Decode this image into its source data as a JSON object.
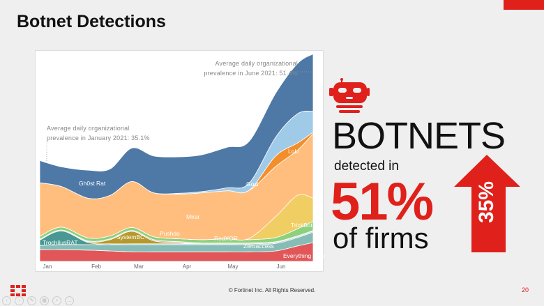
{
  "slide": {
    "title": "Botnet Detections",
    "footer_copyright": "© Fortinet Inc. All Rights Reserved.",
    "page_number": "20",
    "accent_color": "#e0201b"
  },
  "infographic": {
    "icon": "robot-icon",
    "headline": "BOTNETS",
    "detected_in": "detected in",
    "percent": "51%",
    "of_firms": "of firms",
    "increase_icon": "up-arrow-icon",
    "increase_label": "35%"
  },
  "chart_data": {
    "type": "area",
    "stacked": true,
    "title": "",
    "xlabel": "",
    "ylabel": "",
    "grid": false,
    "legend": "none (inline labels)",
    "x": [
      "2021-01-01",
      "2021-01-15",
      "2021-02-01",
      "2021-02-15",
      "2021-03-01",
      "2021-03-15",
      "2021-04-01",
      "2021-04-15",
      "2021-05-01",
      "2021-05-15",
      "2021-06-01",
      "2021-06-15",
      "2021-06-25"
    ],
    "x_tick_labels": [
      "Jan",
      "Feb",
      "Mar",
      "Apr",
      "May",
      "Jun"
    ],
    "annotations": [
      "Average daily organizational prevalence in January 2021: 35.1%",
      "Average daily organizational prevalence in June 2021: 51.4%"
    ],
    "series": [
      {
        "name": "Everything Else",
        "color": "#e15759",
        "values": [
          2.8,
          2.8,
          2.7,
          2.5,
          2.3,
          2.3,
          2.3,
          2.3,
          2.3,
          2.3,
          2.5,
          3.7,
          4.5
        ]
      },
      {
        "name": "Zeroaccess",
        "color": "#86bcb6",
        "values": [
          1.0,
          1.2,
          1.3,
          1.5,
          1.7,
          1.7,
          1.7,
          1.7,
          1.7,
          1.7,
          1.8,
          2.0,
          2.5
        ]
      },
      {
        "name": "TrochilusRAT",
        "color": "#499894",
        "values": [
          1.3,
          3.3,
          0.5,
          0.2,
          0.2,
          0.2,
          0.2,
          0.2,
          0.2,
          0.2,
          0.2,
          0.2,
          0.2
        ]
      },
      {
        "name": "SystemBC",
        "color": "#b6992d",
        "values": [
          0,
          0,
          0.2,
          1.0,
          3.0,
          0.7,
          0.2,
          0,
          0,
          0,
          0,
          0,
          0
        ]
      },
      {
        "name": "Pushdo",
        "color": "#d7b5a6",
        "values": [
          0.2,
          0.2,
          0.2,
          0.2,
          0.2,
          0.3,
          0.3,
          0.2,
          0.2,
          0.2,
          0.2,
          0.2,
          0.2
        ]
      },
      {
        "name": "RedXOR",
        "color": "#8cd17d",
        "values": [
          0.7,
          0.7,
          0.7,
          0.7,
          0.7,
          0.7,
          0.7,
          0.8,
          1.0,
          0.8,
          1.0,
          1.7,
          2.2
        ]
      },
      {
        "name": "TrickBot",
        "color": "#f1ce63",
        "values": [
          0,
          0,
          0,
          0,
          0,
          0,
          0,
          0,
          0,
          0.3,
          5.0,
          8.0,
          5.5
        ]
      },
      {
        "name": "Mirai",
        "color": "#ffbe7d",
        "values": [
          12.8,
          9.7,
          9.5,
          9.7,
          11.0,
          10.5,
          10.7,
          11.2,
          11.5,
          11.5,
          12.0,
          10.8,
          15.5
        ]
      },
      {
        "name": "Loki",
        "color": "#f28e2b",
        "values": [
          0,
          0,
          0,
          0,
          0,
          0,
          0,
          0,
          0,
          0,
          2.5,
          1.7,
          0.3
        ]
      },
      {
        "name": "Gozi",
        "color": "#a0cbe8",
        "values": [
          0,
          0,
          0,
          0,
          0,
          0,
          0.2,
          0.3,
          0.7,
          1.7,
          4.5,
          7.0,
          5.0
        ]
      },
      {
        "name": "Gh0st Rat",
        "color": "#4e79a7",
        "values": [
          5.3,
          4.7,
          6.7,
          6.3,
          8.0,
          8.8,
          8.7,
          8.8,
          9.7,
          10.0,
          10.5,
          12.0,
          13.7
        ]
      }
    ]
  }
}
